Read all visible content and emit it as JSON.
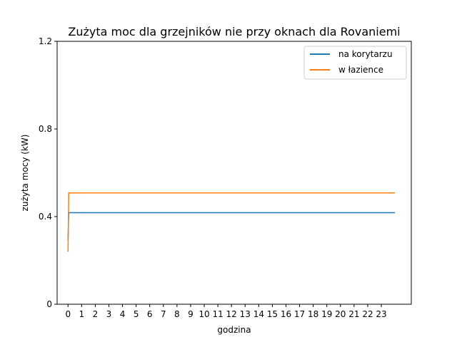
{
  "chart_data": {
    "type": "line",
    "title": "Zużyta moc dla grzejników nie przy oknach dla Rovaniemi",
    "xlabel": "godzina",
    "ylabel": "zużyta mocy (kW)",
    "xlim": [
      -0.8,
      25.2
    ],
    "ylim": [
      0,
      1.2
    ],
    "xticks": [
      0,
      1,
      2,
      3,
      4,
      5,
      6,
      7,
      8,
      9,
      10,
      11,
      12,
      13,
      14,
      15,
      16,
      17,
      18,
      19,
      20,
      21,
      22,
      23
    ],
    "yticks": [
      0,
      0.4,
      0.8,
      1.2
    ],
    "ytick_labels": [
      "0",
      "0.4",
      "0.8",
      "1.2"
    ],
    "grid": false,
    "legend_position": "top-right",
    "series": [
      {
        "name": "na korytarzu",
        "color": "#1f77b4",
        "x": [
          0,
          0.05,
          24
        ],
        "y": [
          0.29,
          0.418,
          0.418
        ]
      },
      {
        "name": "w łazience",
        "color": "#ff7f0e",
        "x": [
          0,
          0.05,
          24
        ],
        "y": [
          0.24,
          0.508,
          0.508
        ]
      }
    ]
  }
}
